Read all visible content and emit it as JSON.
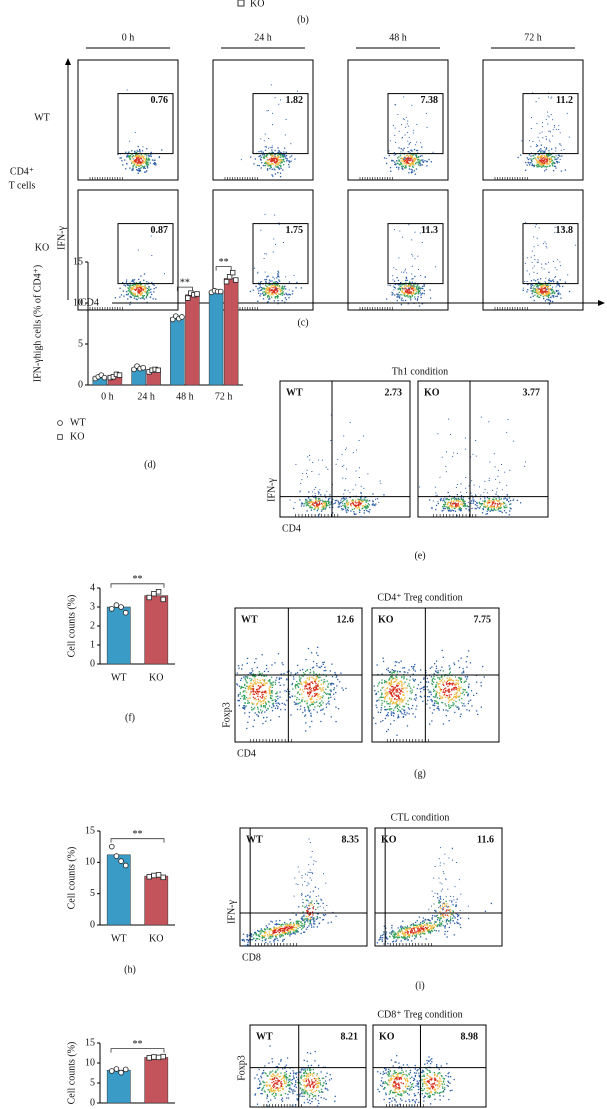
{
  "top_fragment": {
    "legend": "KO",
    "caption": "(b)"
  },
  "panel_c": {
    "columns": [
      "0 h",
      "24 h",
      "48 h",
      "72 h"
    ],
    "rows": [
      "WT",
      "KO"
    ],
    "cell_label": [
      "CD4⁺",
      "T cells"
    ],
    "y_axis": "IFN-γ",
    "x_axis": "CD4",
    "values": [
      [
        0.76,
        1.82,
        7.38,
        11.2
      ],
      [
        0.87,
        1.75,
        11.3,
        13.8
      ]
    ],
    "caption": "(c)"
  },
  "panel_e": {
    "title": "Th1 condition",
    "plots": [
      {
        "label": "WT",
        "value": 2.73
      },
      {
        "label": "KO",
        "value": 3.77
      }
    ],
    "y_axis": "IFN-γ",
    "x_axis": "CD4",
    "caption": "(e)"
  },
  "panel_g": {
    "title": "CD4⁺ Treg condition",
    "plots": [
      {
        "label": "WT",
        "value": 12.6
      },
      {
        "label": "KO",
        "value": 7.75
      }
    ],
    "y_axis": "Foxp3",
    "x_axis": "CD4",
    "caption": "(g)"
  },
  "panel_i": {
    "title": "CTL condition",
    "plots": [
      {
        "label": "WT",
        "value": 8.35
      },
      {
        "label": "KO",
        "value": 11.6
      }
    ],
    "y_axis": "IFN-γ",
    "x_axis": "CD8",
    "caption": "(i)"
  },
  "panel_k": {
    "title": "CD8⁺ Treg condition",
    "plots": [
      {
        "label": "WT",
        "value": 8.21
      },
      {
        "label": "KO",
        "value": 8.98
      }
    ],
    "y_axis": "Foxp3"
  },
  "chart_data": [
    {
      "type": "bar",
      "y_label": "IFN-γhigh cells (% of CD4⁺)",
      "caption": "(d)",
      "categories": [
        "0 h",
        "24 h",
        "48 h",
        "72 h"
      ],
      "series": [
        {
          "name": "WT",
          "color": "#3a9bc6",
          "values": [
            1.0,
            2.1,
            8.2,
            11.4
          ],
          "points": [
            [
              0.8,
              1.0,
              1.2,
              0.9
            ],
            [
              1.9,
              2.3,
              2.0,
              2.1
            ],
            [
              8.0,
              8.4,
              8.1,
              8.3
            ],
            [
              11.3,
              11.5,
              11.4,
              11.4
            ]
          ]
        },
        {
          "name": "KO",
          "color": "#c4545c",
          "values": [
            1.1,
            1.8,
            11.0,
            13.0
          ],
          "points": [
            [
              0.9,
              1.0,
              1.3,
              1.2
            ],
            [
              1.6,
              1.8,
              1.9,
              1.8
            ],
            [
              10.6,
              11.2,
              11.0,
              11.1
            ],
            [
              12.6,
              13.2,
              13.7,
              12.8
            ]
          ]
        }
      ],
      "significance": [
        null,
        null,
        "**",
        "**"
      ],
      "ylim": [
        0,
        15
      ],
      "yticks": [
        0,
        5,
        10,
        15
      ]
    },
    {
      "type": "bar",
      "y_label": "Cell counts (%)",
      "caption": "(f)",
      "categories": [
        "WT",
        "KO"
      ],
      "values": [
        3.0,
        3.6
      ],
      "colors": [
        "#3a9bc6",
        "#c4545c"
      ],
      "points": [
        [
          2.9,
          3.1,
          3.0,
          2.7
        ],
        [
          3.5,
          3.7,
          3.8,
          3.4
        ]
      ],
      "significance": "**",
      "ylim": [
        0,
        4
      ],
      "yticks": [
        0,
        1,
        2,
        3,
        4
      ]
    },
    {
      "type": "bar",
      "y_label": "Cell counts (%)",
      "caption": "(h)",
      "categories": [
        "WT",
        "KO"
      ],
      "values": [
        11.2,
        7.8
      ],
      "colors": [
        "#3a9bc6",
        "#c4545c"
      ],
      "points": [
        [
          12.5,
          11.0,
          10.2,
          9.5
        ],
        [
          7.7,
          7.9,
          8.0,
          7.6
        ]
      ],
      "significance": "**",
      "ylim": [
        0,
        15
      ],
      "yticks": [
        0,
        5,
        10,
        15
      ]
    },
    {
      "type": "bar",
      "y_label": "Cell counts (%)",
      "values": [
        8.2,
        11.4
      ],
      "colors": [
        "#3a9bc6",
        "#c4545c"
      ],
      "points": [
        [
          8.0,
          8.5,
          7.6,
          8.4
        ],
        [
          11.3,
          11.5,
          11.4,
          11.6
        ]
      ],
      "significance": "**",
      "ylim": [
        0,
        15
      ],
      "yticks": [
        0,
        5,
        10,
        15
      ]
    }
  ]
}
